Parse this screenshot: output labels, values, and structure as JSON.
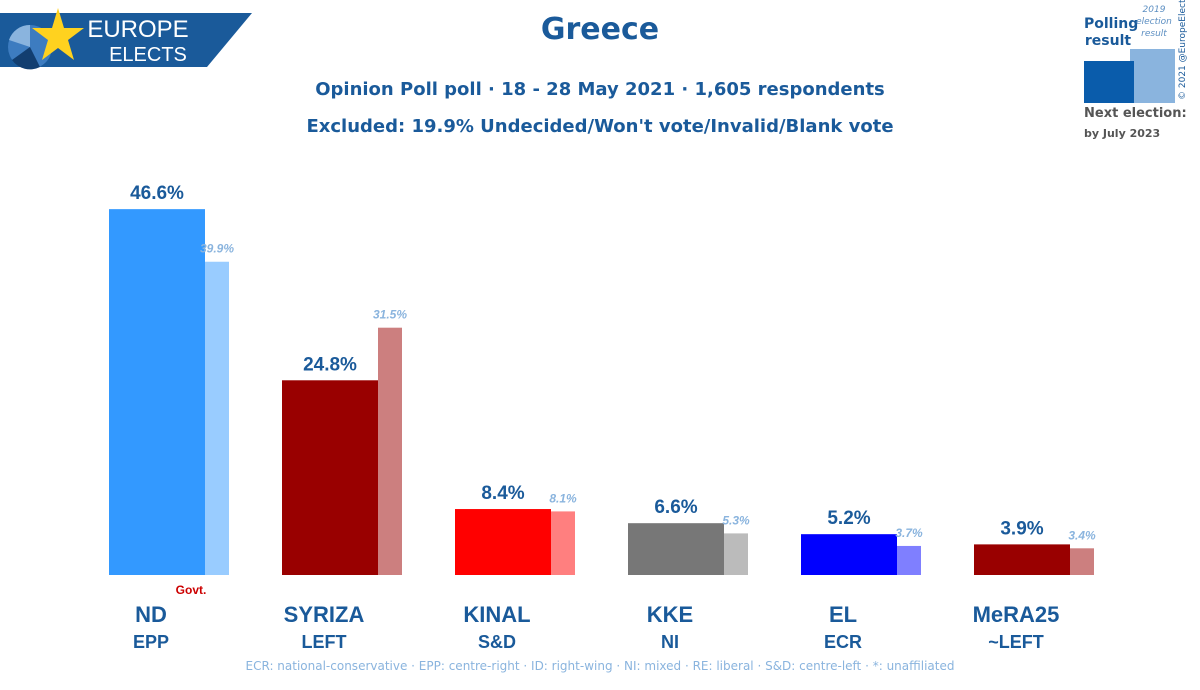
{
  "logo": {
    "line1": "EUROPE",
    "line2": "ELECTS"
  },
  "title": "Greece",
  "subtitle1": "Opinion Poll poll · 18 - 28 May 2021 · 1,605 respondents",
  "subtitle2": "Excluded: 19.9% Undecided/Won't vote/Invalid/Blank vote",
  "legend": {
    "polling_label": "Polling result",
    "election_label": "2019 election result",
    "next_election_label": "Next election:",
    "next_election_date": "by July 2023",
    "copyright": "© 2021 @EuropeElects"
  },
  "footer": "ECR: national-conservative · EPP: centre-right · ID: right-wing · NI: mixed · RE: liberal · S&D: centre-left · *: unaffiliated",
  "chart_data": {
    "type": "bar",
    "categories": [
      "ND",
      "SYRIZA",
      "KINAL",
      "KKE",
      "EL",
      "MeRA25"
    ],
    "groups": [
      "EPP",
      "LEFT",
      "S&D",
      "NI",
      "ECR",
      "~LEFT"
    ],
    "series": [
      {
        "name": "Polling result",
        "values": [
          46.6,
          24.8,
          8.4,
          6.6,
          5.2,
          3.9
        ],
        "labels": [
          "46.6%",
          "24.8%",
          "8.4%",
          "6.6%",
          "5.2%",
          "3.9%"
        ]
      },
      {
        "name": "2019 election result",
        "values": [
          39.9,
          31.5,
          8.1,
          5.3,
          3.7,
          3.4
        ],
        "labels": [
          "39.9%",
          "31.5%",
          "8.1%",
          "5.3%",
          "3.7%",
          "3.4%"
        ]
      }
    ],
    "colors": [
      "#3399ff",
      "#990000",
      "#ff0000",
      "#777777",
      "#0000ff",
      "#990000"
    ],
    "light_colors": [
      "#99ccff",
      "#cc7f7f",
      "#ff7f7f",
      "#bbbbbb",
      "#7f7fff",
      "#cc7f7f"
    ],
    "annotation": {
      "category": "ND",
      "text": "Govt."
    },
    "ylim": [
      0,
      47
    ]
  }
}
